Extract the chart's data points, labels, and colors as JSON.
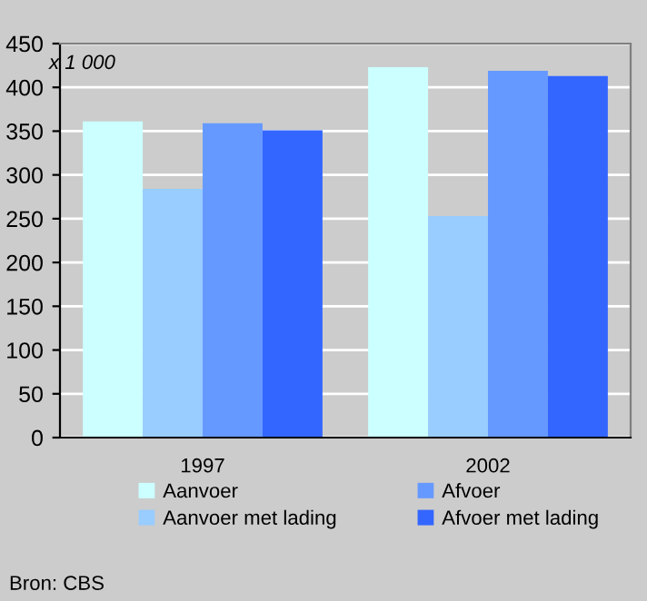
{
  "chart_data": {
    "type": "bar",
    "ylabel": "x 1 000",
    "categories": [
      "1997",
      "2002"
    ],
    "series": [
      {
        "name": "Aanvoer",
        "color": "#ccffff",
        "values": [
          361,
          423
        ]
      },
      {
        "name": "Aanvoer met lading",
        "color": "#99ccff",
        "values": [
          284,
          253
        ]
      },
      {
        "name": "Afvoer",
        "color": "#6699ff",
        "values": [
          359,
          419
        ]
      },
      {
        "name": "Afvoer met lading",
        "color": "#3366ff",
        "values": [
          351,
          413
        ]
      }
    ],
    "ylim": [
      0,
      450
    ],
    "yticks": [
      0,
      50,
      100,
      150,
      200,
      250,
      300,
      350,
      400,
      450
    ],
    "grid": "y",
    "legend": "bottom",
    "annotations": [
      "Bron: CBS"
    ]
  }
}
